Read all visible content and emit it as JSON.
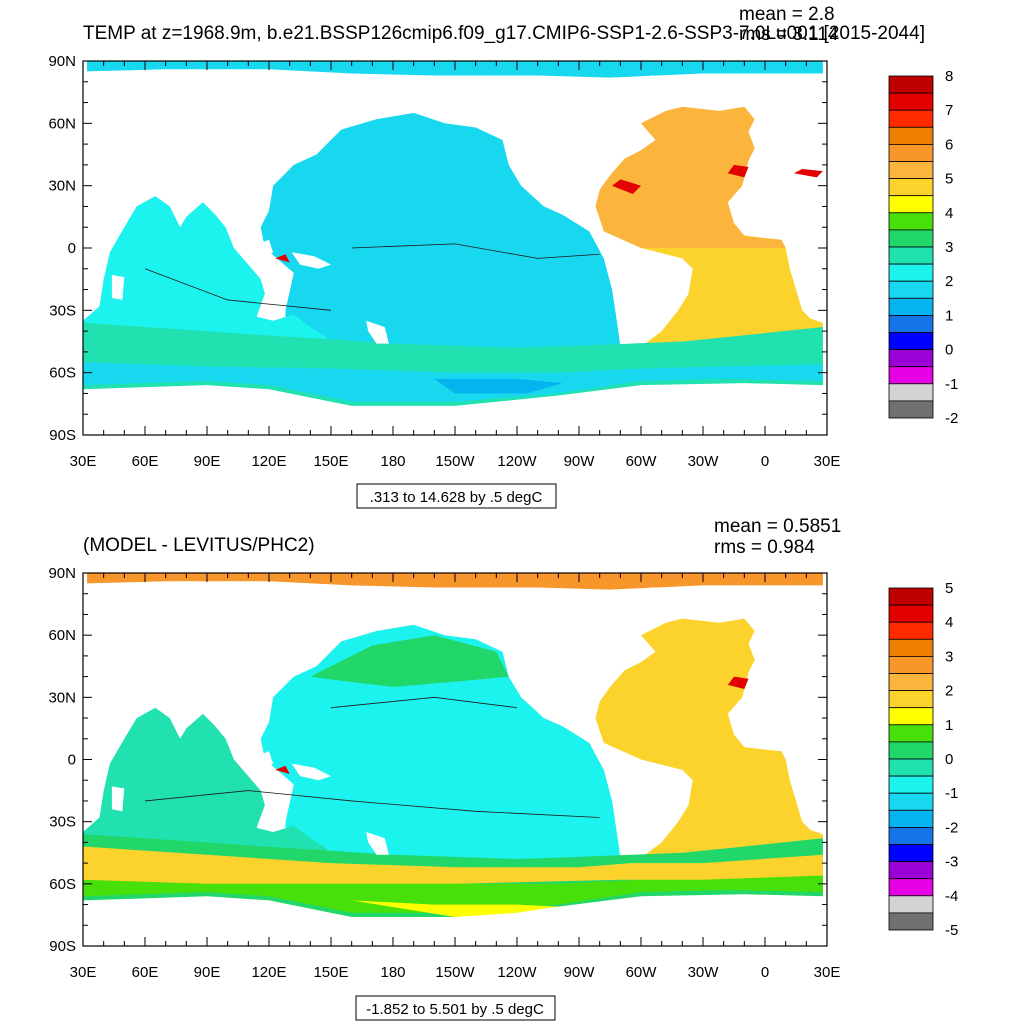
{
  "colors": {
    "land": "#ffffff",
    "frame": "#000000",
    "contour": "#1a1a1a"
  },
  "chart_data": [
    {
      "type": "heatmap",
      "title": "TEMP at z=1968.9m, b.e21.BSSP126cmip6.f09_g17.CMIP6-SSP1-2.6-SSP3-7.0Lu001 [2015-2044]",
      "stats": {
        "mean": "mean = 2.8",
        "rms": "rms = 3.114"
      },
      "xticks": [
        "30E",
        "60E",
        "90E",
        "120E",
        "150E",
        "180",
        "150W",
        "120W",
        "90W",
        "60W",
        "30W",
        "0",
        "30E"
      ],
      "yticks": [
        "90N",
        "60N",
        "30N",
        "0",
        "30S",
        "60S",
        "90S"
      ],
      "xlim": [
        30,
        390
      ],
      "ylim": [
        -90,
        90
      ],
      "contour_info": ".313 to 14.628 by .5 degC",
      "units": "degC",
      "colorbar": {
        "labels": [
          "8",
          "7",
          "6",
          "5",
          "4",
          "3",
          "2",
          "1",
          "0",
          "-1",
          "-2"
        ],
        "colors": [
          "#bf0000",
          "#e30000",
          "#ff2a00",
          "#ef7f00",
          "#f7962a",
          "#fbb53c",
          "#fcd32c",
          "#ffff00",
          "#47e00a",
          "#22d76a",
          "#22e1b1",
          "#1cf2ee",
          "#17d8ee",
          "#05b4ee",
          "#1474e8",
          "#0000ff",
          "#9b00d4",
          "#e500e5",
          "#d4d4d4",
          "#707070"
        ]
      },
      "fields": {
        "pacific": 1.8,
        "indian": 2.3,
        "atlantic_north": 5.3,
        "atlantic_south": 4.7,
        "arctic": 1.8,
        "southern_band": 2.6,
        "southern_inner": 1.7,
        "ross": 1.2,
        "med_outflow": 7.5
      }
    },
    {
      "type": "heatmap",
      "title": "(MODEL - LEVITUS/PHC2)",
      "stats": {
        "mean": "mean = 0.5851",
        "rms": "rms = 0.984"
      },
      "xticks": [
        "30E",
        "60E",
        "90E",
        "120E",
        "150E",
        "180",
        "150W",
        "120W",
        "90W",
        "60W",
        "30W",
        "0",
        "30E"
      ],
      "yticks": [
        "90N",
        "60N",
        "30N",
        "0",
        "30S",
        "60S",
        "90S"
      ],
      "xlim": [
        30,
        390
      ],
      "ylim": [
        -90,
        90
      ],
      "contour_info": "-1.852 to 5.501 by .5 degC",
      "units": "degC",
      "colorbar": {
        "labels": [
          "5",
          "4",
          "3",
          "2",
          "1",
          "0",
          "-1",
          "-2",
          "-3",
          "-4",
          "-5"
        ],
        "colors": [
          "#bf0000",
          "#e30000",
          "#ff2a00",
          "#ef7f00",
          "#f7962a",
          "#fbb53c",
          "#fcd32c",
          "#ffff00",
          "#47e00a",
          "#22d76a",
          "#22e1b1",
          "#1cf2ee",
          "#17d8ee",
          "#05b4ee",
          "#1474e8",
          "#0000ff",
          "#9b00d4",
          "#e500e5",
          "#d4d4d4",
          "#707070"
        ]
      },
      "fields": {
        "pacific": -0.6,
        "pacific_north": 0.3,
        "indian": -0.3,
        "atlantic_north": 1.8,
        "atlantic_south": 1.7,
        "arctic": 2.6,
        "southern_band": 0.2,
        "southern_mid": 1.8,
        "southern_inner": 0.8,
        "med_outflow": 4.5
      }
    }
  ]
}
